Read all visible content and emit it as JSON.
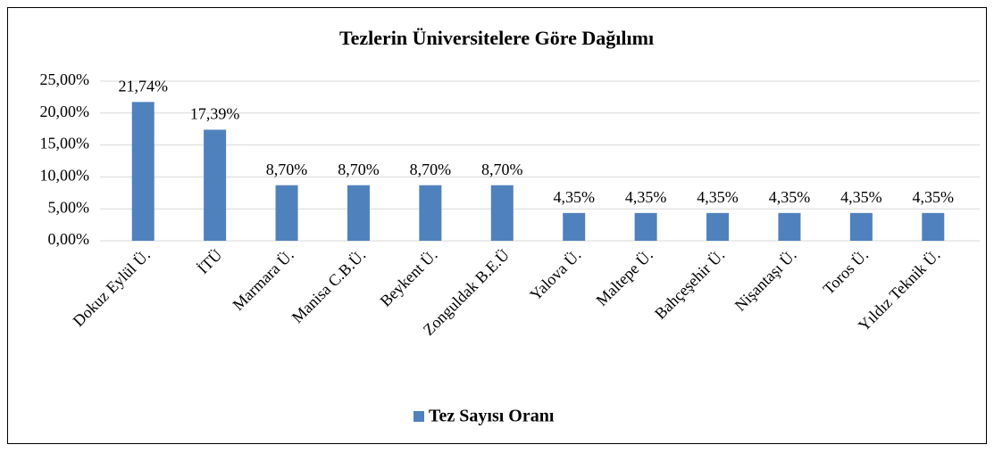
{
  "chart_data": {
    "type": "bar",
    "title": "Tezlerin Üniversitelere Göre Dağılımı",
    "categories": [
      "Dokuz Eylül Ü.",
      "İTÜ",
      "Marmara Ü.",
      "Manisa C.B.Ü.",
      "Beykent Ü.",
      "Zonguldak B.E.Ü",
      "Yalova Ü.",
      "Maltepe Ü.",
      "Bahçeşehir Ü.",
      "Nişantaşı Ü.",
      "Toros Ü.",
      "Yıldız Teknik Ü."
    ],
    "series": [
      {
        "name": "Tez Sayısı Oranı",
        "color": "#4f81bd",
        "values": [
          21.74,
          17.39,
          8.7,
          8.7,
          8.7,
          8.7,
          4.35,
          4.35,
          4.35,
          4.35,
          4.35,
          4.35
        ],
        "value_labels": [
          "21,74%",
          "17,39%",
          "8,70%",
          "8,70%",
          "8,70%",
          "8,70%",
          "4,35%",
          "4,35%",
          "4,35%",
          "4,35%",
          "4,35%",
          "4,35%"
        ]
      }
    ],
    "ylim": [
      0,
      25
    ],
    "yticks": [
      {
        "value": 0,
        "label": "0,00%"
      },
      {
        "value": 5,
        "label": "5,00%"
      },
      {
        "value": 10,
        "label": "10,00%"
      },
      {
        "value": 15,
        "label": "15,00%"
      },
      {
        "value": 20,
        "label": "20,00%"
      },
      {
        "value": 25,
        "label": "25,00%"
      }
    ],
    "grid": true,
    "legend": "bottom"
  }
}
